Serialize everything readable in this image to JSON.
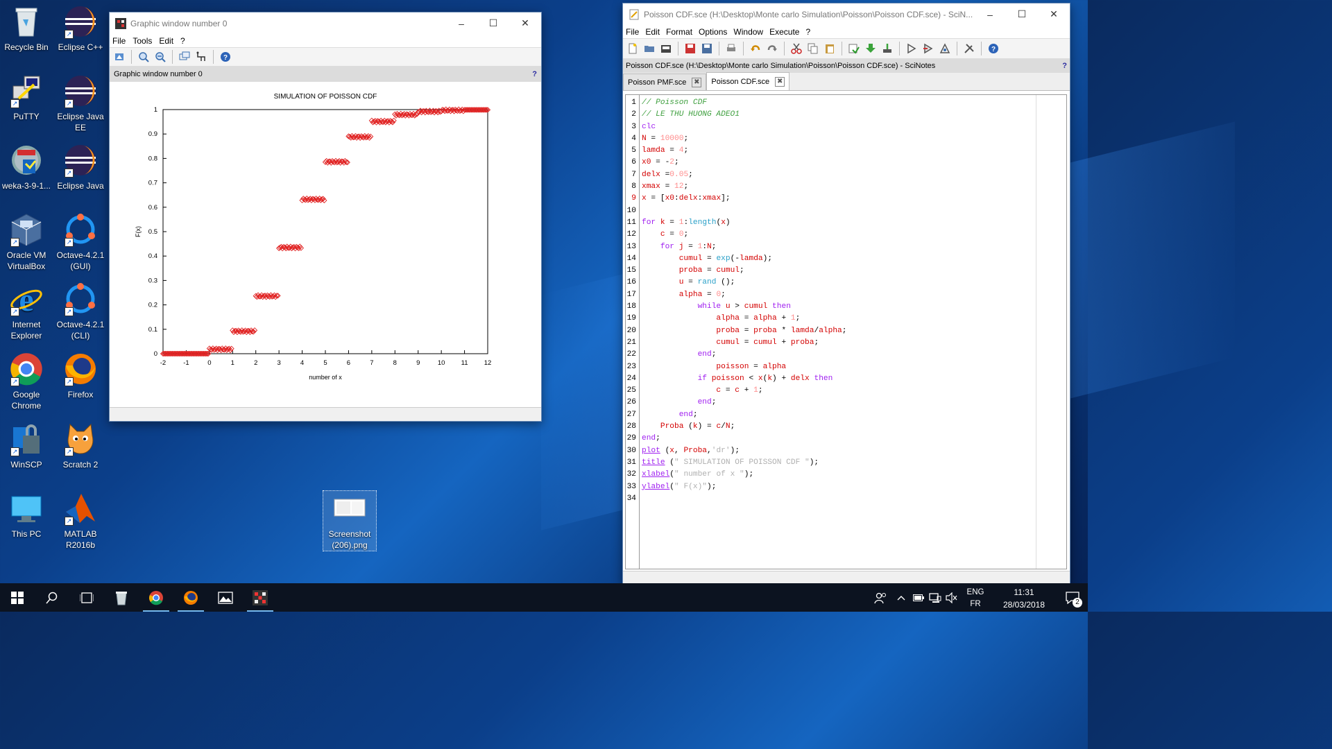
{
  "desktop_icons": [
    {
      "id": "recycle",
      "label": "Recycle Bin"
    },
    {
      "id": "eclipse-cpp",
      "label": "Eclipse C++"
    },
    {
      "id": "putty",
      "label": "PuTTY"
    },
    {
      "id": "eclipse-java-ee",
      "label": "Eclipse Java EE"
    },
    {
      "id": "weka",
      "label": "weka-3-9-1..."
    },
    {
      "id": "eclipse-java",
      "label": "Eclipse Java"
    },
    {
      "id": "virtualbox",
      "label": "Oracle VM VirtualBox"
    },
    {
      "id": "octave-gui",
      "label": "Octave-4.2.1 (GUI)"
    },
    {
      "id": "ie",
      "label": "Internet Explorer"
    },
    {
      "id": "octave-cli",
      "label": "Octave-4.2.1 (CLI)"
    },
    {
      "id": "chrome",
      "label": "Google Chrome"
    },
    {
      "id": "firefox",
      "label": "Firefox"
    },
    {
      "id": "winscp",
      "label": "WinSCP"
    },
    {
      "id": "scratch",
      "label": "Scratch 2"
    },
    {
      "id": "thispc",
      "label": "This PC"
    },
    {
      "id": "matlab",
      "label": "MATLAB R2016b"
    },
    {
      "id": "screenshot",
      "label": "Screenshot (206).png"
    }
  ],
  "graphic_window": {
    "title": "Graphic window number 0",
    "menu": [
      "File",
      "Tools",
      "Edit",
      "?"
    ],
    "info_bar": "Graphic window number 0",
    "help": "?"
  },
  "chart_data": {
    "type": "scatter",
    "title": "SIMULATION OF POISSON CDF",
    "xlabel": "number of x",
    "ylabel": "F(x)",
    "xlim": [
      -2,
      12
    ],
    "ylim": [
      0,
      1
    ],
    "xticks": [
      "-2",
      "-1",
      "0",
      "1",
      "2",
      "3",
      "4",
      "5",
      "6",
      "7",
      "8",
      "9",
      "10",
      "11",
      "12"
    ],
    "yticks": [
      "0",
      "0.1",
      "0.2",
      "0.3",
      "0.4",
      "0.5",
      "0.6",
      "0.7",
      "0.8",
      "0.9",
      "1"
    ],
    "marker": "diamond",
    "color": "#e02020",
    "steps": [
      {
        "x_from": -2,
        "x_to": -0.05,
        "y": 0.0
      },
      {
        "x_from": 0,
        "x_to": 0.95,
        "y": 0.018
      },
      {
        "x_from": 1,
        "x_to": 1.95,
        "y": 0.092
      },
      {
        "x_from": 2,
        "x_to": 2.95,
        "y": 0.236
      },
      {
        "x_from": 3,
        "x_to": 3.95,
        "y": 0.435
      },
      {
        "x_from": 4,
        "x_to": 4.95,
        "y": 0.632
      },
      {
        "x_from": 5,
        "x_to": 5.95,
        "y": 0.786
      },
      {
        "x_from": 6,
        "x_to": 6.95,
        "y": 0.888
      },
      {
        "x_from": 7,
        "x_to": 7.95,
        "y": 0.951
      },
      {
        "x_from": 8,
        "x_to": 8.95,
        "y": 0.979
      },
      {
        "x_from": 9,
        "x_to": 9.95,
        "y": 0.992
      },
      {
        "x_from": 10,
        "x_to": 10.95,
        "y": 0.997
      },
      {
        "x_from": 11,
        "x_to": 12,
        "y": 0.999
      }
    ]
  },
  "scinotes": {
    "title": "Poisson CDF.sce (H:\\Desktop\\Monte carlo Simulation\\Poisson\\Poisson CDF.sce) - SciN...",
    "menu": [
      "File",
      "Edit",
      "Format",
      "Options",
      "Window",
      "Execute",
      "?"
    ],
    "info_bar": "Poisson CDF.sce (H:\\Desktop\\Monte carlo Simulation\\Poisson\\Poisson CDF.sce) - SciNotes",
    "help": "?",
    "tabs": [
      "Poisson PMF.sce",
      "Poisson CDF.sce"
    ],
    "lines": [
      "// Poisson CDF",
      "// LE THU HUONG ADEO1",
      "clc",
      "N = 10000;",
      "lamda = 4;",
      "x0 = -2;",
      "delx =0.05;",
      "xmax = 12;",
      "x = [x0:delx:xmax];",
      "",
      "for k = 1:length(x)",
      "    c = 0;",
      "    for j = 1:N;",
      "        cumul = exp(-lamda);",
      "        proba = cumul;",
      "        u = rand ();",
      "        alpha = 0;",
      "            while u > cumul then",
      "                alpha = alpha + 1;",
      "                proba = proba * lamda/alpha;",
      "                cumul = cumul + proba;",
      "            end;",
      "                poisson = alpha",
      "            if poisson < x(k) + delx then",
      "                c = c + 1;",
      "            end;",
      "        end;",
      "    Proba (k) = c/N;",
      "end;",
      "plot (x, Proba,'dr');",
      "title (\" SIMULATION OF POISSON CDF \");",
      "xlabel(\" number of x \");",
      "ylabel(\" F(x)\");",
      ""
    ]
  },
  "tray": {
    "lang_top": "ENG",
    "lang_bottom": "FR",
    "time": "11:31",
    "date": "28/03/2018",
    "notifications": "2"
  }
}
